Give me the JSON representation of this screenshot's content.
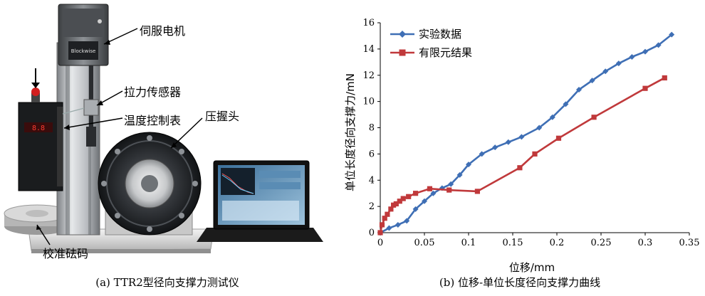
{
  "photo": {
    "caption": "(a) TTR2型径向支撑力测试仪",
    "labels": {
      "servo_motor": "伺服电机",
      "load_sensor": "拉力传感器",
      "temp_controller": "温度控制表",
      "crimp_head": "压握头",
      "calibration_weight": "校准砝码"
    },
    "brand_text": "Blockwise"
  },
  "chart_caption": "(b) 位移-单位长度径向支撑力曲线",
  "chart_data": {
    "type": "line",
    "xlabel": "位移/mm",
    "ylabel": "单位长度径向支撑力/mN",
    "xlim": [
      0,
      0.35
    ],
    "ylim": [
      0,
      16
    ],
    "x_ticks": [
      "0",
      "0.05",
      "0.1",
      "0.15",
      "0.2",
      "0.25",
      "0.3",
      "0.35"
    ],
    "y_ticks": [
      "0",
      "2",
      "4",
      "6",
      "8",
      "10",
      "12",
      "14",
      "16"
    ],
    "grid": false,
    "legend_position": "top-left",
    "series": [
      {
        "name": "实验数据",
        "color": "#3f6fb5",
        "marker": "diamond",
        "points": [
          [
            0.0,
            0.0
          ],
          [
            0.01,
            0.35
          ],
          [
            0.02,
            0.6
          ],
          [
            0.03,
            0.9
          ],
          [
            0.04,
            1.8
          ],
          [
            0.05,
            2.4
          ],
          [
            0.06,
            3.0
          ],
          [
            0.07,
            3.4
          ],
          [
            0.08,
            3.7
          ],
          [
            0.09,
            4.4
          ],
          [
            0.1,
            5.2
          ],
          [
            0.115,
            6.0
          ],
          [
            0.13,
            6.5
          ],
          [
            0.145,
            6.9
          ],
          [
            0.16,
            7.3
          ],
          [
            0.18,
            8.0
          ],
          [
            0.195,
            8.8
          ],
          [
            0.21,
            9.8
          ],
          [
            0.225,
            10.9
          ],
          [
            0.24,
            11.6
          ],
          [
            0.255,
            12.3
          ],
          [
            0.27,
            12.9
          ],
          [
            0.285,
            13.4
          ],
          [
            0.3,
            13.8
          ],
          [
            0.315,
            14.3
          ],
          [
            0.33,
            15.1
          ]
        ]
      },
      {
        "name": "有限元结果",
        "color": "#c0393b",
        "marker": "square",
        "points": [
          [
            0.0,
            0.0
          ],
          [
            0.002,
            0.6
          ],
          [
            0.005,
            1.1
          ],
          [
            0.008,
            1.4
          ],
          [
            0.012,
            1.8
          ],
          [
            0.015,
            2.1
          ],
          [
            0.018,
            2.2
          ],
          [
            0.022,
            2.4
          ],
          [
            0.026,
            2.6
          ],
          [
            0.032,
            2.75
          ],
          [
            0.04,
            3.0
          ],
          [
            0.056,
            3.35
          ],
          [
            0.078,
            3.25
          ],
          [
            0.11,
            3.15
          ],
          [
            0.158,
            4.95
          ],
          [
            0.175,
            6.0
          ],
          [
            0.202,
            7.2
          ],
          [
            0.242,
            8.8
          ],
          [
            0.3,
            11.0
          ],
          [
            0.322,
            11.8
          ]
        ]
      }
    ]
  }
}
